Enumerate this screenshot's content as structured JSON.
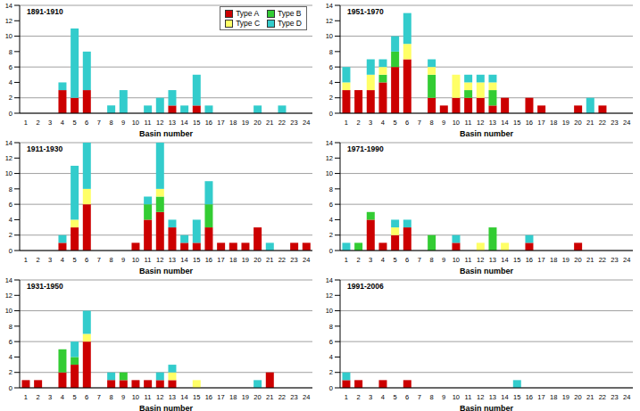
{
  "chart_data": [
    {
      "type": "bar",
      "title": "1891-1910",
      "x_label": "Basin number",
      "stacked": true,
      "grid": true,
      "legend": "upper right",
      "categories": [
        "1",
        "2",
        "3",
        "4",
        "5",
        "6",
        "7",
        "8",
        "9",
        "10",
        "11",
        "12",
        "13",
        "14",
        "15",
        "16",
        "17",
        "18",
        "19",
        "20",
        "21",
        "22",
        "23",
        "24"
      ],
      "ylim": [
        0,
        14
      ],
      "yticks": [
        0,
        2,
        4,
        6,
        8,
        10,
        12,
        14
      ],
      "series": [
        {
          "name": "Type A",
          "color": "#cc0000",
          "values": [
            0,
            0,
            0,
            3,
            2,
            3,
            0,
            0,
            0,
            0,
            0,
            0,
            1,
            0,
            1,
            0,
            0,
            0,
            0,
            0,
            0,
            0,
            0,
            0
          ]
        },
        {
          "name": "Type B",
          "color": "#33cc33",
          "values": [
            0,
            0,
            0,
            0,
            0,
            0,
            0,
            0,
            0,
            0,
            0,
            0,
            0,
            0,
            0,
            0,
            0,
            0,
            0,
            0,
            0,
            0,
            0,
            0
          ]
        },
        {
          "name": "Type C",
          "color": "#ffff66",
          "values": [
            0,
            0,
            0,
            0,
            0,
            0,
            0,
            0,
            0,
            0,
            0,
            0,
            0,
            0,
            0,
            0,
            0,
            0,
            0,
            0,
            0,
            0,
            0,
            0
          ]
        },
        {
          "name": "Type D",
          "color": "#33cccc",
          "values": [
            0,
            0,
            0,
            1,
            9,
            5,
            0,
            1,
            3,
            0,
            1,
            2,
            2,
            1,
            4,
            1,
            0,
            0,
            0,
            1,
            0,
            1,
            0,
            0
          ]
        }
      ]
    },
    {
      "type": "bar",
      "title": "1951-1970",
      "x_label": "Basin number",
      "stacked": true,
      "grid": true,
      "categories": [
        "1",
        "2",
        "3",
        "4",
        "5",
        "6",
        "7",
        "8",
        "9",
        "10",
        "11",
        "12",
        "13",
        "14",
        "15",
        "16",
        "17",
        "18",
        "19",
        "20",
        "21",
        "22",
        "23",
        "24"
      ],
      "ylim": [
        0,
        14
      ],
      "yticks": [
        0,
        2,
        4,
        6,
        8,
        10,
        12,
        14
      ],
      "series": [
        {
          "name": "Type A",
          "color": "#cc0000",
          "values": [
            3,
            3,
            3,
            4,
            6,
            7,
            0,
            2,
            1,
            2,
            2,
            2,
            1,
            2,
            0,
            2,
            1,
            0,
            0,
            1,
            0,
            1,
            0,
            0
          ]
        },
        {
          "name": "Type B",
          "color": "#33cc33",
          "values": [
            0,
            0,
            0,
            1,
            2,
            0,
            0,
            3,
            0,
            0,
            1,
            0,
            2,
            0,
            0,
            0,
            0,
            0,
            0,
            0,
            0,
            0,
            0,
            0
          ]
        },
        {
          "name": "Type C",
          "color": "#ffff66",
          "values": [
            1,
            0,
            2,
            1,
            0,
            2,
            0,
            1,
            0,
            3,
            1,
            2,
            1,
            0,
            0,
            0,
            0,
            0,
            0,
            0,
            0,
            0,
            0,
            0
          ]
        },
        {
          "name": "Type D",
          "color": "#33cccc",
          "values": [
            2,
            0,
            2,
            1,
            2,
            4,
            0,
            1,
            0,
            0,
            1,
            1,
            1,
            0,
            0,
            0,
            0,
            0,
            0,
            0,
            2,
            0,
            0,
            0
          ]
        }
      ]
    },
    {
      "type": "bar",
      "title": "1911-1930",
      "x_label": "Basin number",
      "stacked": true,
      "grid": true,
      "categories": [
        "1",
        "2",
        "3",
        "4",
        "5",
        "6",
        "7",
        "8",
        "9",
        "10",
        "11",
        "12",
        "13",
        "14",
        "15",
        "16",
        "17",
        "18",
        "19",
        "20",
        "21",
        "22",
        "23",
        "24"
      ],
      "ylim": [
        0,
        14
      ],
      "yticks": [
        0,
        2,
        4,
        6,
        8,
        10,
        12,
        14
      ],
      "series": [
        {
          "name": "Type A",
          "color": "#cc0000",
          "values": [
            0,
            0,
            0,
            1,
            3,
            6,
            0,
            0,
            0,
            1,
            4,
            5,
            3,
            1,
            1,
            3,
            1,
            1,
            1,
            3,
            0,
            0,
            1,
            1
          ]
        },
        {
          "name": "Type B",
          "color": "#33cc33",
          "values": [
            0,
            0,
            0,
            0,
            0,
            0,
            0,
            0,
            0,
            0,
            2,
            2,
            0,
            0,
            0,
            3,
            0,
            0,
            0,
            0,
            0,
            0,
            0,
            0
          ]
        },
        {
          "name": "Type C",
          "color": "#ffff66",
          "values": [
            0,
            0,
            0,
            0,
            1,
            2,
            0,
            0,
            0,
            0,
            0,
            1,
            0,
            0,
            0,
            0,
            0,
            0,
            0,
            0,
            0,
            0,
            0,
            0
          ]
        },
        {
          "name": "Type D",
          "color": "#33cccc",
          "values": [
            0,
            0,
            0,
            1,
            7,
            6,
            0,
            0,
            0,
            0,
            1,
            6,
            1,
            1,
            3,
            3,
            0,
            0,
            0,
            0,
            1,
            0,
            0,
            0
          ]
        }
      ]
    },
    {
      "type": "bar",
      "title": "1971-1990",
      "x_label": "Basin number",
      "stacked": true,
      "grid": true,
      "categories": [
        "1",
        "2",
        "3",
        "4",
        "5",
        "6",
        "7",
        "8",
        "9",
        "10",
        "11",
        "12",
        "13",
        "14",
        "15",
        "16",
        "17",
        "18",
        "19",
        "20",
        "21",
        "22",
        "23",
        "24"
      ],
      "ylim": [
        0,
        14
      ],
      "yticks": [
        0,
        2,
        4,
        6,
        8,
        10,
        12,
        14
      ],
      "series": [
        {
          "name": "Type A",
          "color": "#cc0000",
          "values": [
            0,
            0,
            4,
            1,
            2,
            3,
            0,
            0,
            0,
            1,
            0,
            0,
            0,
            0,
            0,
            1,
            0,
            0,
            0,
            1,
            0,
            0,
            0,
            0
          ]
        },
        {
          "name": "Type B",
          "color": "#33cc33",
          "values": [
            0,
            1,
            1,
            0,
            0,
            0,
            0,
            2,
            0,
            0,
            0,
            0,
            3,
            0,
            0,
            0,
            0,
            0,
            0,
            0,
            0,
            0,
            0,
            0
          ]
        },
        {
          "name": "Type C",
          "color": "#ffff66",
          "values": [
            0,
            0,
            0,
            0,
            1,
            0,
            0,
            0,
            0,
            0,
            0,
            1,
            0,
            1,
            0,
            0,
            0,
            0,
            0,
            0,
            0,
            0,
            0,
            0
          ]
        },
        {
          "name": "Type D",
          "color": "#33cccc",
          "values": [
            1,
            0,
            0,
            0,
            1,
            1,
            0,
            0,
            0,
            1,
            0,
            0,
            0,
            0,
            0,
            1,
            0,
            0,
            0,
            0,
            0,
            0,
            0,
            0
          ]
        }
      ]
    },
    {
      "type": "bar",
      "title": "1931-1950",
      "x_label": "Basin number",
      "stacked": true,
      "grid": true,
      "categories": [
        "1",
        "2",
        "3",
        "4",
        "5",
        "6",
        "7",
        "8",
        "9",
        "10",
        "11",
        "12",
        "13",
        "14",
        "15",
        "16",
        "17",
        "18",
        "19",
        "20",
        "21",
        "22",
        "23",
        "24"
      ],
      "ylim": [
        0,
        14
      ],
      "yticks": [
        0,
        2,
        4,
        6,
        8,
        10,
        12,
        14
      ],
      "series": [
        {
          "name": "Type A",
          "color": "#cc0000",
          "values": [
            1,
            1,
            0,
            2,
            3,
            6,
            0,
            1,
            1,
            1,
            1,
            1,
            1,
            0,
            0,
            0,
            0,
            0,
            0,
            0,
            2,
            0,
            0,
            0
          ]
        },
        {
          "name": "Type B",
          "color": "#33cc33",
          "values": [
            0,
            0,
            0,
            3,
            1,
            0,
            0,
            0,
            1,
            0,
            0,
            0,
            0,
            0,
            0,
            0,
            0,
            0,
            0,
            0,
            0,
            0,
            0,
            0
          ]
        },
        {
          "name": "Type C",
          "color": "#ffff66",
          "values": [
            0,
            0,
            0,
            0,
            0,
            1,
            0,
            0,
            0,
            0,
            0,
            0,
            1,
            0,
            1,
            0,
            0,
            0,
            0,
            0,
            0,
            0,
            0,
            0
          ]
        },
        {
          "name": "Type D",
          "color": "#33cccc",
          "values": [
            0,
            0,
            0,
            0,
            2,
            3,
            0,
            1,
            0,
            0,
            0,
            1,
            1,
            0,
            0,
            0,
            0,
            0,
            0,
            1,
            0,
            0,
            0,
            0
          ]
        }
      ]
    },
    {
      "type": "bar",
      "title": "1991-2006",
      "x_label": "Basin number",
      "stacked": true,
      "grid": true,
      "categories": [
        "1",
        "2",
        "3",
        "4",
        "5",
        "6",
        "7",
        "8",
        "9",
        "10",
        "11",
        "12",
        "13",
        "14",
        "15",
        "16",
        "17",
        "18",
        "19",
        "20",
        "21",
        "22",
        "23",
        "24"
      ],
      "ylim": [
        0,
        14
      ],
      "yticks": [
        0,
        2,
        4,
        6,
        8,
        10,
        12,
        14
      ],
      "series": [
        {
          "name": "Type A",
          "color": "#cc0000",
          "values": [
            1,
            1,
            0,
            1,
            0,
            1,
            0,
            0,
            0,
            0,
            0,
            0,
            0,
            0,
            0,
            0,
            0,
            0,
            0,
            0,
            0,
            0,
            0,
            0
          ]
        },
        {
          "name": "Type B",
          "color": "#33cc33",
          "values": [
            0,
            0,
            0,
            0,
            0,
            0,
            0,
            0,
            0,
            0,
            0,
            0,
            0,
            0,
            0,
            0,
            0,
            0,
            0,
            0,
            0,
            0,
            0,
            0
          ]
        },
        {
          "name": "Type C",
          "color": "#ffff66",
          "values": [
            0,
            0,
            0,
            0,
            0,
            0,
            0,
            0,
            0,
            0,
            0,
            0,
            0,
            0,
            0,
            0,
            0,
            0,
            0,
            0,
            0,
            0,
            0,
            0
          ]
        },
        {
          "name": "Type D",
          "color": "#33cccc",
          "values": [
            1,
            0,
            0,
            0,
            0,
            0,
            0,
            0,
            0,
            0,
            0,
            0,
            0,
            0,
            1,
            0,
            0,
            0,
            0,
            0,
            0,
            0,
            0,
            0
          ]
        }
      ]
    }
  ]
}
